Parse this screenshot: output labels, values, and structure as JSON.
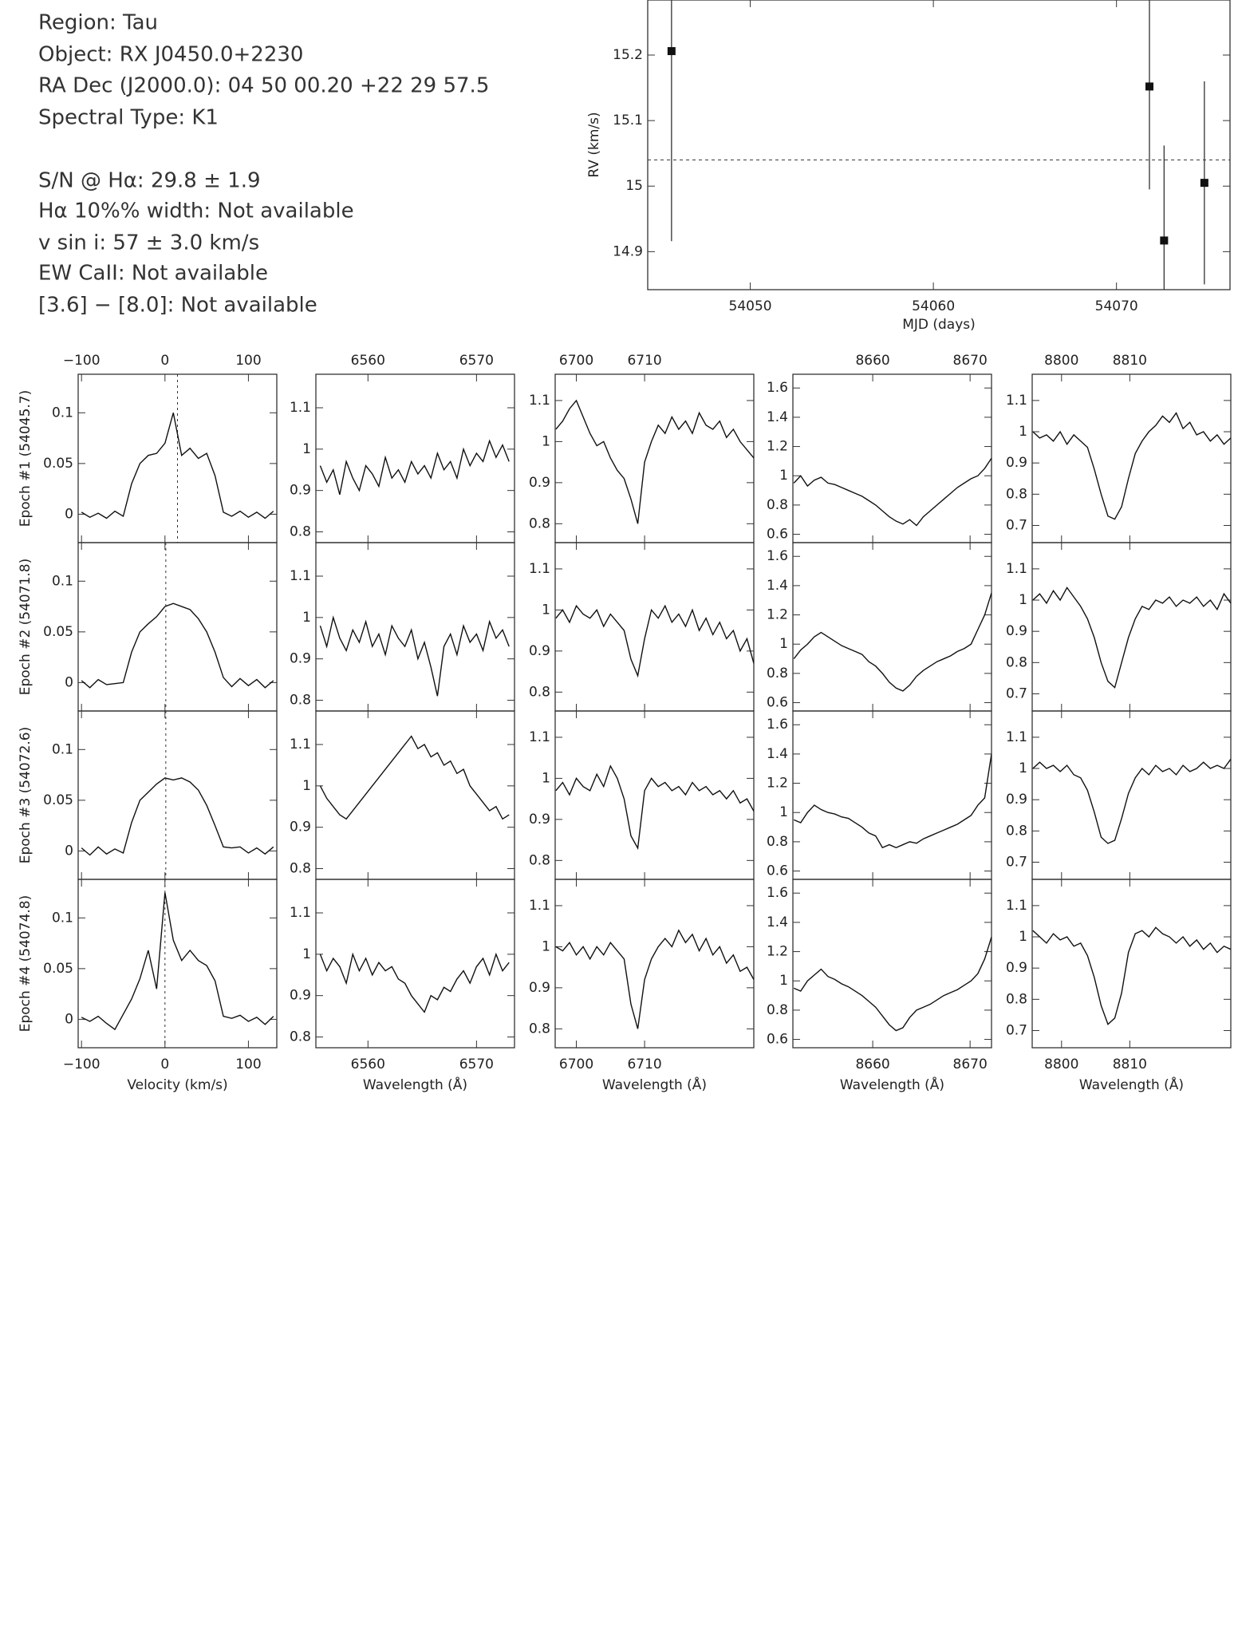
{
  "header": {
    "lines": [
      "Region: Tau",
      "Object: RX J0450.0+2230",
      "RA Dec (J2000.0): 04 50 00.20 +22 29 57.5",
      "Spectral Type: K1",
      "S/N @ Hα: 29.8 ± 1.9",
      "Hα 10%% width: Not available",
      "v sin i: 57 ± 3.0 km/s",
      "EW CaII: Not available",
      "[3.6] − [8.0]: Not available"
    ]
  },
  "chart_data": [
    {
      "type": "scatter",
      "xlabel": "MJD (days)",
      "ylabel": "RV (km/s)",
      "x": [
        54045.7,
        54071.8,
        54072.6,
        54074.8
      ],
      "values": [
        15.206,
        15.152,
        14.917,
        15.005
      ],
      "errors": [
        0.29,
        0.157,
        0.145,
        0.155
      ],
      "mean": 15.04,
      "xlim": [
        54044.4,
        54076.2
      ],
      "xticks": [
        54050,
        54060,
        54070
      ],
      "ylim": [
        14.842,
        15.284
      ],
      "yticks": [
        14.9,
        15,
        15.1,
        15.2
      ]
    },
    {
      "type": "line",
      "xlabel": "Velocity (km/s)",
      "xlim": [
        -104,
        134
      ],
      "xticks": [
        {
          "value": -100,
          "label": "−100"
        },
        0,
        100
      ],
      "ylim": [
        -0.028,
        0.138
      ],
      "yticks": [
        0,
        0.05,
        0.1
      ],
      "x": [
        -100,
        -90,
        -80,
        -70,
        -60,
        -50,
        -40,
        -30,
        -20,
        -10,
        0,
        10,
        20,
        30,
        40,
        50,
        60,
        70,
        80,
        90,
        100,
        110,
        120,
        130
      ],
      "panels": [
        {
          "ylabel": "Epoch #1 (54045.7)",
          "rv_line": 15,
          "values": [
            0.002,
            -0.003,
            0.001,
            -0.004,
            0.003,
            -0.002,
            0.03,
            0.05,
            0.058,
            0.06,
            0.07,
            0.1,
            0.058,
            0.065,
            0.055,
            0.06,
            0.038,
            0.002,
            -0.002,
            0.003,
            -0.003,
            0.002,
            -0.004,
            0.003
          ]
        },
        {
          "ylabel": "Epoch #2 (54071.8)",
          "rv_line": 1,
          "values": [
            0.002,
            -0.005,
            0.003,
            -0.002,
            -0.001,
            0,
            0.03,
            0.05,
            0.058,
            0.065,
            0.075,
            0.078,
            0.075,
            0.072,
            0.063,
            0.05,
            0.03,
            0.005,
            -0.004,
            0.004,
            -0.003,
            0.003,
            -0.005,
            0.002
          ]
        },
        {
          "ylabel": "Epoch #3 (54072.6)",
          "rv_line": 1,
          "values": [
            0.003,
            -0.004,
            0.004,
            -0.003,
            0.002,
            -0.002,
            0.028,
            0.05,
            0.058,
            0.066,
            0.072,
            0.07,
            0.072,
            0.068,
            0.06,
            0.045,
            0.025,
            0.004,
            0.003,
            0.004,
            -0.002,
            0.003,
            -0.003,
            0.004
          ]
        },
        {
          "ylabel": "Epoch #4 (54074.8)",
          "rv_line": 0,
          "values": [
            0.002,
            -0.002,
            0.003,
            -0.004,
            -0.01,
            0.005,
            0.02,
            0.04,
            0.068,
            0.03,
            0.125,
            0.078,
            0.058,
            0.068,
            0.058,
            0.053,
            0.038,
            0.003,
            0.001,
            0.004,
            -0.002,
            0.002,
            -0.005,
            0.003
          ]
        }
      ]
    },
    {
      "type": "line",
      "xlabel": "Wavelength (Å)",
      "xlim": [
        6555.2,
        6573.5
      ],
      "xticks": [
        6560,
        6570
      ],
      "ylim": [
        0.774,
        1.181
      ],
      "yticks": [
        0.8,
        0.9,
        1,
        1.1
      ],
      "x": [
        6555.6,
        6556.2,
        6556.8,
        6557.4,
        6558.0,
        6558.6,
        6559.2,
        6559.8,
        6560.4,
        6561.0,
        6561.6,
        6562.2,
        6562.8,
        6563.4,
        6564.0,
        6564.6,
        6565.2,
        6565.8,
        6566.4,
        6567.0,
        6567.6,
        6568.2,
        6568.8,
        6569.4,
        6570.0,
        6570.6,
        6571.2,
        6571.8,
        6572.4,
        6573.0
      ],
      "panels": [
        {
          "values": [
            0.96,
            0.92,
            0.95,
            0.89,
            0.97,
            0.93,
            0.9,
            0.96,
            0.94,
            0.91,
            0.98,
            0.93,
            0.95,
            0.92,
            0.97,
            0.94,
            0.96,
            0.93,
            0.99,
            0.95,
            0.97,
            0.93,
            1.0,
            0.96,
            0.99,
            0.97,
            1.02,
            0.98,
            1.01,
            0.97
          ]
        },
        {
          "values": [
            0.98,
            0.93,
            1.0,
            0.95,
            0.92,
            0.97,
            0.94,
            0.99,
            0.93,
            0.96,
            0.91,
            0.98,
            0.95,
            0.93,
            0.97,
            0.9,
            0.94,
            0.88,
            0.81,
            0.93,
            0.96,
            0.91,
            0.98,
            0.94,
            0.96,
            0.92,
            0.99,
            0.95,
            0.97,
            0.93
          ]
        },
        {
          "values": [
            1.0,
            0.97,
            0.95,
            0.93,
            0.92,
            0.94,
            0.96,
            0.98,
            1.0,
            1.02,
            1.04,
            1.06,
            1.08,
            1.1,
            1.12,
            1.09,
            1.1,
            1.07,
            1.08,
            1.05,
            1.06,
            1.03,
            1.04,
            1.0,
            0.98,
            0.96,
            0.94,
            0.95,
            0.92,
            0.93
          ]
        },
        {
          "values": [
            1.0,
            0.96,
            0.99,
            0.97,
            0.93,
            1.0,
            0.96,
            0.99,
            0.95,
            0.98,
            0.96,
            0.97,
            0.94,
            0.93,
            0.9,
            0.88,
            0.86,
            0.9,
            0.89,
            0.92,
            0.91,
            0.94,
            0.96,
            0.93,
            0.97,
            0.99,
            0.95,
            1.0,
            0.96,
            0.98
          ]
        }
      ]
    },
    {
      "type": "line",
      "xlabel": "Wavelength (Å)",
      "xlim": [
        6696.9,
        6726
      ],
      "xticks": [
        6700,
        6710
      ],
      "ylim": [
        0.754,
        1.164
      ],
      "yticks": [
        0.8,
        0.9,
        1,
        1.1
      ],
      "x": [
        6697,
        6698,
        6699,
        6700,
        6701,
        6702,
        6703,
        6704,
        6705,
        6706,
        6707,
        6708,
        6709,
        6710,
        6711,
        6712,
        6713,
        6714,
        6715,
        6716,
        6717,
        6718,
        6719,
        6720,
        6721,
        6722,
        6723,
        6724,
        6725,
        6726
      ],
      "panels": [
        {
          "values": [
            1.03,
            1.05,
            1.08,
            1.1,
            1.06,
            1.02,
            0.99,
            1.0,
            0.96,
            0.93,
            0.91,
            0.86,
            0.8,
            0.95,
            1.0,
            1.04,
            1.02,
            1.06,
            1.03,
            1.05,
            1.02,
            1.07,
            1.04,
            1.03,
            1.05,
            1.01,
            1.03,
            1.0,
            0.98,
            0.96
          ]
        },
        {
          "values": [
            0.98,
            1.0,
            0.97,
            1.01,
            0.99,
            0.98,
            1.0,
            0.96,
            0.99,
            0.97,
            0.95,
            0.88,
            0.84,
            0.93,
            1.0,
            0.98,
            1.01,
            0.97,
            0.99,
            0.96,
            1.0,
            0.95,
            0.98,
            0.94,
            0.97,
            0.93,
            0.95,
            0.9,
            0.93,
            0.87
          ]
        },
        {
          "values": [
            0.97,
            0.99,
            0.96,
            1.0,
            0.98,
            0.97,
            1.01,
            0.98,
            1.03,
            1.0,
            0.95,
            0.86,
            0.83,
            0.97,
            1.0,
            0.98,
            0.99,
            0.97,
            0.98,
            0.96,
            0.99,
            0.97,
            0.98,
            0.96,
            0.97,
            0.95,
            0.97,
            0.94,
            0.95,
            0.92
          ]
        },
        {
          "values": [
            1.0,
            0.99,
            1.01,
            0.98,
            1.0,
            0.97,
            1.0,
            0.98,
            1.01,
            0.99,
            0.97,
            0.86,
            0.8,
            0.92,
            0.97,
            1.0,
            1.02,
            1.0,
            1.04,
            1.01,
            1.03,
            0.99,
            1.02,
            0.98,
            1.0,
            0.96,
            0.98,
            0.94,
            0.95,
            0.92
          ]
        }
      ]
    },
    {
      "type": "line",
      "xlabel": "Wavelength (Å)",
      "xlim": [
        8651.8,
        8672.2
      ],
      "xticks": [
        8660,
        8670
      ],
      "ylim": [
        0.543,
        1.694
      ],
      "yticks": [
        0.6,
        0.8,
        1,
        1.2,
        1.4,
        1.6
      ],
      "x": [
        8651.9,
        8652.6,
        8653.3,
        8654.0,
        8654.7,
        8655.4,
        8656.1,
        8656.8,
        8657.5,
        8658.2,
        8658.9,
        8659.6,
        8660.3,
        8661.0,
        8661.7,
        8662.4,
        8663.1,
        8663.8,
        8664.5,
        8665.2,
        8665.9,
        8666.6,
        8667.3,
        8668.0,
        8668.7,
        8669.4,
        8670.1,
        8670.8,
        8671.5,
        8672.2
      ],
      "panels": [
        {
          "values": [
            0.95,
            1.0,
            0.93,
            0.97,
            0.99,
            0.95,
            0.94,
            0.92,
            0.9,
            0.88,
            0.86,
            0.83,
            0.8,
            0.76,
            0.72,
            0.69,
            0.67,
            0.7,
            0.66,
            0.72,
            0.76,
            0.8,
            0.84,
            0.88,
            0.92,
            0.95,
            0.98,
            1.0,
            1.05,
            1.12
          ]
        },
        {
          "values": [
            0.9,
            0.96,
            1.0,
            1.05,
            1.08,
            1.05,
            1.02,
            0.99,
            0.97,
            0.95,
            0.93,
            0.88,
            0.85,
            0.8,
            0.74,
            0.7,
            0.68,
            0.72,
            0.78,
            0.82,
            0.85,
            0.88,
            0.9,
            0.92,
            0.95,
            0.97,
            1.0,
            1.1,
            1.2,
            1.35
          ]
        },
        {
          "values": [
            0.95,
            0.93,
            1.0,
            1.05,
            1.02,
            1.0,
            0.99,
            0.97,
            0.96,
            0.93,
            0.9,
            0.86,
            0.84,
            0.76,
            0.78,
            0.76,
            0.78,
            0.8,
            0.79,
            0.82,
            0.84,
            0.86,
            0.88,
            0.9,
            0.92,
            0.95,
            0.98,
            1.05,
            1.1,
            1.4
          ]
        },
        {
          "values": [
            0.95,
            0.93,
            1.0,
            1.04,
            1.08,
            1.03,
            1.01,
            0.98,
            0.96,
            0.93,
            0.9,
            0.86,
            0.82,
            0.76,
            0.7,
            0.66,
            0.68,
            0.75,
            0.8,
            0.82,
            0.84,
            0.87,
            0.9,
            0.92,
            0.94,
            0.97,
            1.0,
            1.05,
            1.15,
            1.3
          ]
        }
      ]
    },
    {
      "type": "line",
      "xlabel": "Wavelength (Å)",
      "xlim": [
        8795.7,
        8824.8
      ],
      "xticks": [
        8800,
        8810
      ],
      "ylim": [
        0.645,
        1.184
      ],
      "yticks": [
        0.7,
        0.8,
        0.9,
        1,
        1.1
      ],
      "x": [
        8795.8,
        8796.8,
        8797.8,
        8798.8,
        8799.8,
        8800.8,
        8801.8,
        8802.8,
        8803.8,
        8804.8,
        8805.8,
        8806.8,
        8807.8,
        8808.8,
        8809.8,
        8810.8,
        8811.8,
        8812.8,
        8813.8,
        8814.8,
        8815.8,
        8816.8,
        8817.8,
        8818.8,
        8819.8,
        8820.8,
        8821.8,
        8822.8,
        8823.8,
        8824.8
      ],
      "panels": [
        {
          "values": [
            1.0,
            0.98,
            0.99,
            0.97,
            1.0,
            0.96,
            0.99,
            0.97,
            0.95,
            0.88,
            0.8,
            0.73,
            0.72,
            0.76,
            0.85,
            0.93,
            0.97,
            1.0,
            1.02,
            1.05,
            1.03,
            1.06,
            1.01,
            1.03,
            0.99,
            1.0,
            0.97,
            0.99,
            0.96,
            0.98
          ]
        },
        {
          "values": [
            1.0,
            1.02,
            0.99,
            1.03,
            1.0,
            1.04,
            1.01,
            0.98,
            0.94,
            0.88,
            0.8,
            0.74,
            0.72,
            0.8,
            0.88,
            0.94,
            0.98,
            0.97,
            1.0,
            0.99,
            1.01,
            0.98,
            1.0,
            0.99,
            1.01,
            0.98,
            1.0,
            0.97,
            1.02,
            0.99
          ]
        },
        {
          "values": [
            1.0,
            1.02,
            1.0,
            1.01,
            0.99,
            1.01,
            0.98,
            0.97,
            0.93,
            0.86,
            0.78,
            0.76,
            0.77,
            0.84,
            0.92,
            0.97,
            1.0,
            0.98,
            1.01,
            0.99,
            1.0,
            0.98,
            1.01,
            0.99,
            1.0,
            1.02,
            1.0,
            1.01,
            1.0,
            1.03
          ]
        },
        {
          "values": [
            1.02,
            1.0,
            0.98,
            1.01,
            0.99,
            1.0,
            0.97,
            0.98,
            0.94,
            0.87,
            0.78,
            0.72,
            0.74,
            0.82,
            0.95,
            1.01,
            1.02,
            1.0,
            1.03,
            1.01,
            1.0,
            0.98,
            1.0,
            0.97,
            0.99,
            0.96,
            0.98,
            0.95,
            0.97,
            0.96
          ]
        }
      ]
    }
  ]
}
